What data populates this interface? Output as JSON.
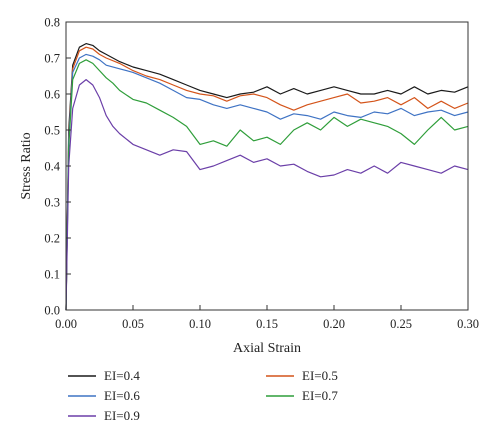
{
  "chart_data": {
    "type": "line",
    "title": "",
    "xlabel": "Axial Strain",
    "ylabel": "Stress Ratio",
    "xlim": [
      0.0,
      0.3
    ],
    "ylim": [
      0.0,
      0.8
    ],
    "x_ticks": [
      "0.00",
      "0.05",
      "0.10",
      "0.15",
      "0.20",
      "0.25",
      "0.30"
    ],
    "y_ticks": [
      "0.0",
      "0.1",
      "0.2",
      "0.3",
      "0.4",
      "0.5",
      "0.6",
      "0.7",
      "0.8"
    ],
    "grid": false,
    "legend_position": "bottom",
    "series": [
      {
        "name": "EI=0.4",
        "color": "#1a1a1a",
        "points": [
          [
            0,
            0
          ],
          [
            0.002,
            0.5
          ],
          [
            0.005,
            0.68
          ],
          [
            0.01,
            0.73
          ],
          [
            0.015,
            0.74
          ],
          [
            0.02,
            0.735
          ],
          [
            0.025,
            0.72
          ],
          [
            0.03,
            0.71
          ],
          [
            0.04,
            0.69
          ],
          [
            0.05,
            0.675
          ],
          [
            0.06,
            0.665
          ],
          [
            0.07,
            0.655
          ],
          [
            0.08,
            0.64
          ],
          [
            0.09,
            0.625
          ],
          [
            0.1,
            0.61
          ],
          [
            0.11,
            0.6
          ],
          [
            0.12,
            0.59
          ],
          [
            0.13,
            0.6
          ],
          [
            0.14,
            0.605
          ],
          [
            0.15,
            0.62
          ],
          [
            0.16,
            0.6
          ],
          [
            0.17,
            0.615
          ],
          [
            0.18,
            0.6
          ],
          [
            0.19,
            0.61
          ],
          [
            0.2,
            0.62
          ],
          [
            0.21,
            0.61
          ],
          [
            0.22,
            0.6
          ],
          [
            0.23,
            0.6
          ],
          [
            0.24,
            0.61
          ],
          [
            0.25,
            0.6
          ],
          [
            0.26,
            0.62
          ],
          [
            0.27,
            0.6
          ],
          [
            0.28,
            0.61
          ],
          [
            0.29,
            0.605
          ],
          [
            0.3,
            0.62
          ]
        ]
      },
      {
        "name": "EI=0.5",
        "color": "#d4541a",
        "points": [
          [
            0,
            0
          ],
          [
            0.002,
            0.48
          ],
          [
            0.005,
            0.67
          ],
          [
            0.01,
            0.72
          ],
          [
            0.015,
            0.73
          ],
          [
            0.02,
            0.725
          ],
          [
            0.025,
            0.71
          ],
          [
            0.03,
            0.7
          ],
          [
            0.04,
            0.685
          ],
          [
            0.05,
            0.665
          ],
          [
            0.06,
            0.65
          ],
          [
            0.07,
            0.64
          ],
          [
            0.08,
            0.625
          ],
          [
            0.09,
            0.61
          ],
          [
            0.1,
            0.6
          ],
          [
            0.11,
            0.595
          ],
          [
            0.12,
            0.58
          ],
          [
            0.13,
            0.595
          ],
          [
            0.14,
            0.6
          ],
          [
            0.15,
            0.59
          ],
          [
            0.16,
            0.57
          ],
          [
            0.17,
            0.555
          ],
          [
            0.18,
            0.57
          ],
          [
            0.19,
            0.58
          ],
          [
            0.2,
            0.59
          ],
          [
            0.21,
            0.6
          ],
          [
            0.22,
            0.575
          ],
          [
            0.23,
            0.58
          ],
          [
            0.24,
            0.59
          ],
          [
            0.25,
            0.57
          ],
          [
            0.26,
            0.59
          ],
          [
            0.27,
            0.56
          ],
          [
            0.28,
            0.58
          ],
          [
            0.29,
            0.56
          ],
          [
            0.3,
            0.575
          ]
        ]
      },
      {
        "name": "EI=0.6",
        "color": "#3f73c4",
        "points": [
          [
            0,
            0
          ],
          [
            0.002,
            0.47
          ],
          [
            0.005,
            0.66
          ],
          [
            0.01,
            0.7
          ],
          [
            0.015,
            0.71
          ],
          [
            0.02,
            0.705
          ],
          [
            0.025,
            0.695
          ],
          [
            0.03,
            0.68
          ],
          [
            0.04,
            0.67
          ],
          [
            0.05,
            0.66
          ],
          [
            0.06,
            0.645
          ],
          [
            0.07,
            0.63
          ],
          [
            0.08,
            0.61
          ],
          [
            0.09,
            0.59
          ],
          [
            0.1,
            0.585
          ],
          [
            0.11,
            0.57
          ],
          [
            0.12,
            0.56
          ],
          [
            0.13,
            0.57
          ],
          [
            0.14,
            0.56
          ],
          [
            0.15,
            0.55
          ],
          [
            0.16,
            0.53
          ],
          [
            0.17,
            0.545
          ],
          [
            0.18,
            0.54
          ],
          [
            0.19,
            0.53
          ],
          [
            0.2,
            0.55
          ],
          [
            0.21,
            0.54
          ],
          [
            0.22,
            0.535
          ],
          [
            0.23,
            0.55
          ],
          [
            0.24,
            0.545
          ],
          [
            0.25,
            0.56
          ],
          [
            0.26,
            0.54
          ],
          [
            0.27,
            0.55
          ],
          [
            0.28,
            0.555
          ],
          [
            0.29,
            0.54
          ],
          [
            0.3,
            0.55
          ]
        ]
      },
      {
        "name": "EI=0.7",
        "color": "#2f9e3a",
        "points": [
          [
            0,
            0
          ],
          [
            0.002,
            0.45
          ],
          [
            0.005,
            0.64
          ],
          [
            0.01,
            0.685
          ],
          [
            0.015,
            0.695
          ],
          [
            0.02,
            0.685
          ],
          [
            0.025,
            0.665
          ],
          [
            0.03,
            0.645
          ],
          [
            0.035,
            0.63
          ],
          [
            0.04,
            0.61
          ],
          [
            0.05,
            0.585
          ],
          [
            0.06,
            0.575
          ],
          [
            0.07,
            0.555
          ],
          [
            0.08,
            0.535
          ],
          [
            0.09,
            0.51
          ],
          [
            0.1,
            0.46
          ],
          [
            0.11,
            0.47
          ],
          [
            0.12,
            0.455
          ],
          [
            0.13,
            0.5
          ],
          [
            0.14,
            0.47
          ],
          [
            0.15,
            0.48
          ],
          [
            0.16,
            0.46
          ],
          [
            0.17,
            0.5
          ],
          [
            0.18,
            0.52
          ],
          [
            0.19,
            0.5
          ],
          [
            0.2,
            0.535
          ],
          [
            0.21,
            0.51
          ],
          [
            0.22,
            0.53
          ],
          [
            0.23,
            0.52
          ],
          [
            0.24,
            0.51
          ],
          [
            0.25,
            0.49
          ],
          [
            0.26,
            0.46
          ],
          [
            0.27,
            0.5
          ],
          [
            0.28,
            0.535
          ],
          [
            0.29,
            0.5
          ],
          [
            0.3,
            0.51
          ]
        ]
      },
      {
        "name": "EI=0.9",
        "color": "#6b3fa8",
        "points": [
          [
            0,
            0
          ],
          [
            0.002,
            0.4
          ],
          [
            0.005,
            0.56
          ],
          [
            0.01,
            0.625
          ],
          [
            0.015,
            0.64
          ],
          [
            0.02,
            0.625
          ],
          [
            0.025,
            0.59
          ],
          [
            0.03,
            0.54
          ],
          [
            0.035,
            0.51
          ],
          [
            0.04,
            0.49
          ],
          [
            0.05,
            0.46
          ],
          [
            0.06,
            0.445
          ],
          [
            0.07,
            0.43
          ],
          [
            0.08,
            0.445
          ],
          [
            0.09,
            0.44
          ],
          [
            0.1,
            0.39
          ],
          [
            0.11,
            0.4
          ],
          [
            0.12,
            0.415
          ],
          [
            0.13,
            0.43
          ],
          [
            0.14,
            0.41
          ],
          [
            0.15,
            0.42
          ],
          [
            0.16,
            0.4
          ],
          [
            0.17,
            0.405
          ],
          [
            0.18,
            0.385
          ],
          [
            0.19,
            0.37
          ],
          [
            0.2,
            0.375
          ],
          [
            0.21,
            0.39
          ],
          [
            0.22,
            0.38
          ],
          [
            0.23,
            0.4
          ],
          [
            0.24,
            0.38
          ],
          [
            0.25,
            0.41
          ],
          [
            0.26,
            0.4
          ],
          [
            0.27,
            0.39
          ],
          [
            0.28,
            0.38
          ],
          [
            0.29,
            0.4
          ],
          [
            0.3,
            0.39
          ]
        ]
      }
    ]
  }
}
